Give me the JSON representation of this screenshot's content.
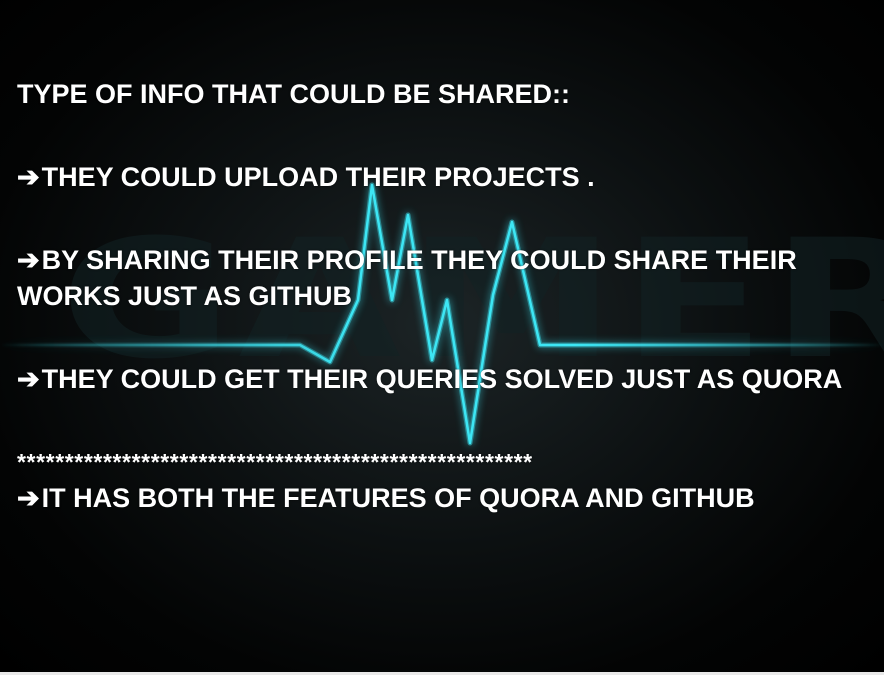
{
  "slide": {
    "heading": "TYPE OF INFO THAT COULD BE SHARED::",
    "arrow_glyph": "➔",
    "bullets": [
      "THEY COULD UPLOAD THEIR PROJECTS .",
      "BY SHARING THEIR PROFILE THEY COULD SHARE THEIR WORKS JUST AS GITHUB",
      "THEY COULD GET THEIR QUERIES SOLVED JUST AS QUORA"
    ],
    "separator": "******************************************************",
    "conclusion": "IT HAS BOTH THE FEATURES OF QUORA AND GITHUB"
  },
  "background": {
    "word": "GAMER",
    "pulse_color": "#3ff0ff",
    "text_color": "#ffffff"
  }
}
